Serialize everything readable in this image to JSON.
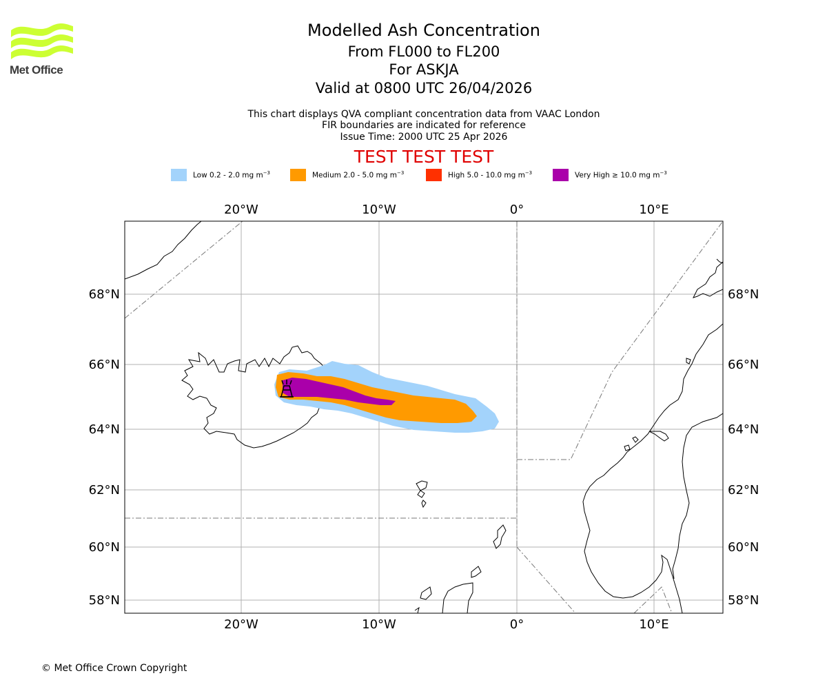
{
  "logo": {
    "text": "Met Office",
    "color": "#ccff33"
  },
  "title": {
    "line1": "Modelled Ash Concentration",
    "line2": "From FL000 to FL200",
    "line3": "For ASKJA",
    "line4": "Valid at 0800 UTC 26/04/2026"
  },
  "subtitle": {
    "line1": "This chart displays QVA compliant concentration data from VAAC London",
    "line2": "FIR boundaries are indicated for reference",
    "line3": "Issue Time: 2000 UTC 25 Apr 2026"
  },
  "test_banner": "TEST TEST TEST",
  "legend": [
    {
      "label": "Low 0.2 - 2.0 mg m",
      "exp": "−3",
      "color": "#a3d3fb"
    },
    {
      "label": "Medium 2.0 - 5.0 mg m",
      "exp": "−3",
      "color": "#ff9a00"
    },
    {
      "label": "High 5.0 - 10.0 mg m",
      "exp": "−3",
      "color": "#ff3000"
    },
    {
      "label": "Very High ≥ 10.0 mg m",
      "exp": "−3",
      "color": "#aa00aa"
    }
  ],
  "map": {
    "lon_ticks": [
      "20°W",
      "10°W",
      "0°",
      "10°E"
    ],
    "lat_ticks": [
      "68°N",
      "66°N",
      "64°N",
      "62°N",
      "60°N",
      "58°N"
    ],
    "volcano": "ASKJA"
  },
  "copyright": "© Met Office Crown Copyright"
}
